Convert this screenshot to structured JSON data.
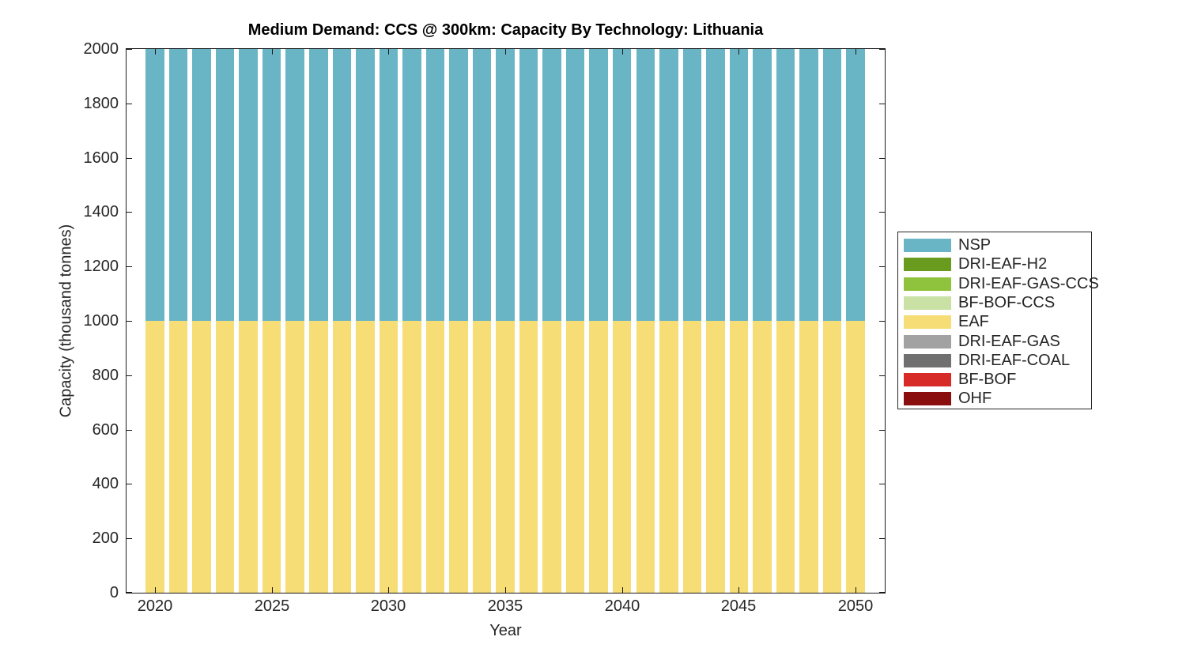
{
  "figure": {
    "background_color": "#ffffff",
    "axis_color": "#1a1a1a",
    "text_color": "#262626"
  },
  "chart_data": {
    "type": "bar",
    "stacked": true,
    "title": "Medium Demand: CCS @ 300km: Capacity By Technology: Lithuania",
    "xlabel": "Year",
    "ylabel": "Capacity (thousand tonnes)",
    "x": [
      2020,
      2021,
      2022,
      2023,
      2024,
      2025,
      2026,
      2027,
      2028,
      2029,
      2030,
      2031,
      2032,
      2033,
      2034,
      2035,
      2036,
      2037,
      2038,
      2039,
      2040,
      2041,
      2042,
      2043,
      2044,
      2045,
      2046,
      2047,
      2048,
      2049,
      2050
    ],
    "xlim": [
      2018.78,
      2051.25
    ],
    "ylim": [
      0,
      2000
    ],
    "xticks": [
      2020,
      2025,
      2030,
      2035,
      2040,
      2045,
      2050
    ],
    "yticks": [
      0,
      200,
      400,
      600,
      800,
      1000,
      1200,
      1400,
      1600,
      1800,
      2000
    ],
    "grid": false,
    "bar_width_years": 0.8,
    "legend_position": "right-outside",
    "stack_order_note": "bottom-to-top stacking is the reverse of the series list; legend lists series top-of-stack first",
    "series": [
      {
        "name": "NSP",
        "color": "#69b5c6",
        "values": [
          1000,
          1000,
          1000,
          1000,
          1000,
          1000,
          1000,
          1000,
          1000,
          1000,
          1000,
          1000,
          1000,
          1000,
          1000,
          1000,
          1000,
          1000,
          1000,
          1000,
          1000,
          1000,
          1000,
          1000,
          1000,
          1000,
          1000,
          1000,
          1000,
          1000,
          1000
        ]
      },
      {
        "name": "DRI-EAF-H2",
        "color": "#699b1e",
        "values": [
          0,
          0,
          0,
          0,
          0,
          0,
          0,
          0,
          0,
          0,
          0,
          0,
          0,
          0,
          0,
          0,
          0,
          0,
          0,
          0,
          0,
          0,
          0,
          0,
          0,
          0,
          0,
          0,
          0,
          0,
          0
        ]
      },
      {
        "name": "DRI-EAF-GAS-CCS",
        "color": "#90c33d",
        "values": [
          0,
          0,
          0,
          0,
          0,
          0,
          0,
          0,
          0,
          0,
          0,
          0,
          0,
          0,
          0,
          0,
          0,
          0,
          0,
          0,
          0,
          0,
          0,
          0,
          0,
          0,
          0,
          0,
          0,
          0,
          0
        ]
      },
      {
        "name": "BF-BOF-CCS",
        "color": "#c9e1a4",
        "values": [
          0,
          0,
          0,
          0,
          0,
          0,
          0,
          0,
          0,
          0,
          0,
          0,
          0,
          0,
          0,
          0,
          0,
          0,
          0,
          0,
          0,
          0,
          0,
          0,
          0,
          0,
          0,
          0,
          0,
          0,
          0
        ]
      },
      {
        "name": "EAF",
        "color": "#f7dd75",
        "values": [
          1000,
          1000,
          1000,
          1000,
          1000,
          1000,
          1000,
          1000,
          1000,
          1000,
          1000,
          1000,
          1000,
          1000,
          1000,
          1000,
          1000,
          1000,
          1000,
          1000,
          1000,
          1000,
          1000,
          1000,
          1000,
          1000,
          1000,
          1000,
          1000,
          1000,
          1000
        ]
      },
      {
        "name": "DRI-EAF-GAS",
        "color": "#a2a2a2",
        "values": [
          0,
          0,
          0,
          0,
          0,
          0,
          0,
          0,
          0,
          0,
          0,
          0,
          0,
          0,
          0,
          0,
          0,
          0,
          0,
          0,
          0,
          0,
          0,
          0,
          0,
          0,
          0,
          0,
          0,
          0,
          0
        ]
      },
      {
        "name": "DRI-EAF-COAL",
        "color": "#707070",
        "values": [
          0,
          0,
          0,
          0,
          0,
          0,
          0,
          0,
          0,
          0,
          0,
          0,
          0,
          0,
          0,
          0,
          0,
          0,
          0,
          0,
          0,
          0,
          0,
          0,
          0,
          0,
          0,
          0,
          0,
          0,
          0
        ]
      },
      {
        "name": "BF-BOF",
        "color": "#d62b27",
        "values": [
          0,
          0,
          0,
          0,
          0,
          0,
          0,
          0,
          0,
          0,
          0,
          0,
          0,
          0,
          0,
          0,
          0,
          0,
          0,
          0,
          0,
          0,
          0,
          0,
          0,
          0,
          0,
          0,
          0,
          0,
          0
        ]
      },
      {
        "name": "OHF",
        "color": "#8b0e0e",
        "values": [
          0,
          0,
          0,
          0,
          0,
          0,
          0,
          0,
          0,
          0,
          0,
          0,
          0,
          0,
          0,
          0,
          0,
          0,
          0,
          0,
          0,
          0,
          0,
          0,
          0,
          0,
          0,
          0,
          0,
          0,
          0
        ]
      }
    ]
  }
}
